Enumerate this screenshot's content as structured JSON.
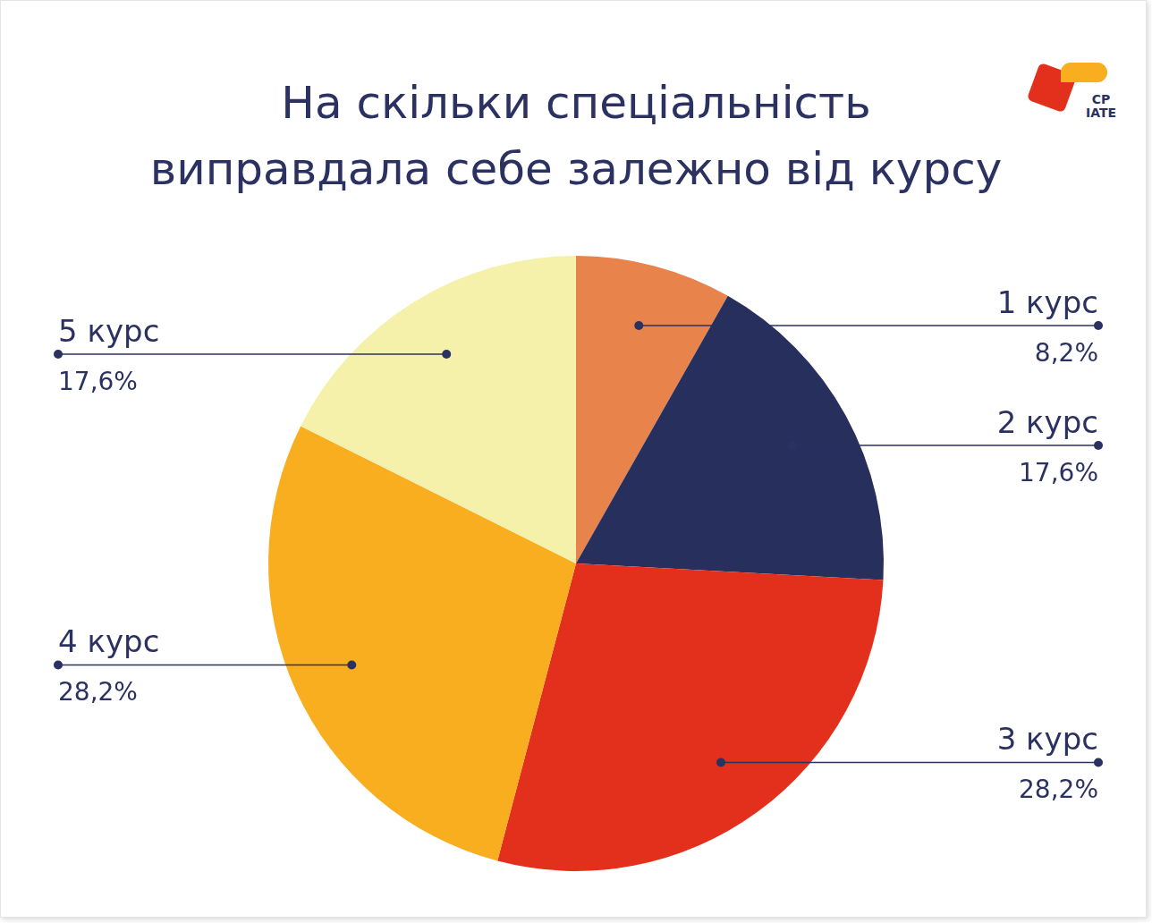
{
  "chart_data": {
    "type": "pie",
    "title": "На скільки спеціальність\nвиправдала себе залежно від курсу",
    "categories": [
      "1 курс",
      "2 курс",
      "3 курс",
      "4 курс",
      "5 курс"
    ],
    "values": [
      8.2,
      17.6,
      28.2,
      28.2,
      17.6
    ],
    "value_labels": [
      "8,2%",
      "17,6%",
      "28,2%",
      "28,2%",
      "17,6%"
    ],
    "colors": [
      "#e8834b",
      "#272f5c",
      "#e3301c",
      "#f8ae1f",
      "#f5f1aa"
    ],
    "data_labels": true,
    "annotations": [
      "CP",
      "IATE"
    ]
  }
}
